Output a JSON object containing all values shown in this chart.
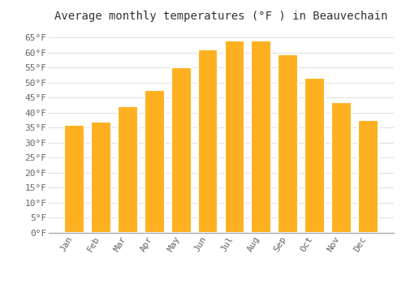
{
  "title": "Average monthly temperatures (°F ) in Beauvechain",
  "months": [
    "Jan",
    "Feb",
    "Mar",
    "Apr",
    "May",
    "Jun",
    "Jul",
    "Aug",
    "Sep",
    "Oct",
    "Nov",
    "Dec"
  ],
  "values": [
    36,
    37,
    42,
    47.5,
    55,
    61,
    64,
    64,
    59.5,
    51.5,
    43.5,
    37.5
  ],
  "bar_color_top": "#FFB020",
  "bar_color_bottom": "#FFCC55",
  "bar_edge_color": "#FFFFFF",
  "background_color": "#FFFFFF",
  "grid_color": "#dddddd",
  "ylim": [
    0,
    68
  ],
  "yticks": [
    0,
    5,
    10,
    15,
    20,
    25,
    30,
    35,
    40,
    45,
    50,
    55,
    60,
    65
  ],
  "title_fontsize": 10,
  "tick_fontsize": 8,
  "fig_width": 5.0,
  "fig_height": 3.5,
  "dpi": 100
}
